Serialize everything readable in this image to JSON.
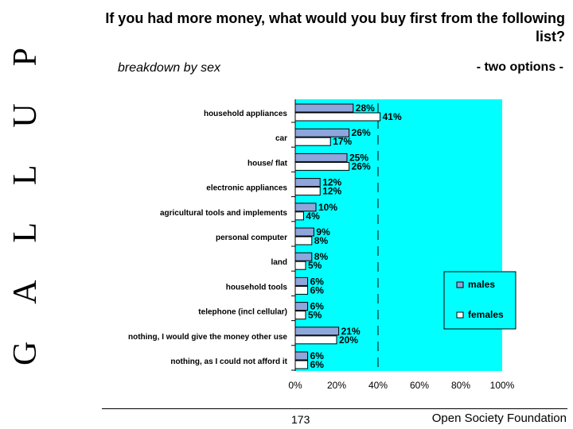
{
  "header": {
    "title": "If you had more money, what would you buy first from the following list?",
    "subtitle": "breakdown by sex",
    "options_note": "- two options -"
  },
  "brand": {
    "vertical_logo": "GALLUP"
  },
  "footer": {
    "page_number": "173",
    "organization": "Open Society Foundation"
  },
  "colors": {
    "plot_background": "#00ffff",
    "males_bar": "#8fa6dc",
    "females_bar": "#ffffff",
    "bar_outline": "#000000"
  },
  "chart_data": {
    "type": "bar",
    "orientation": "horizontal",
    "categories": [
      "household appliances",
      "car",
      "house/ flat",
      "electronic appliances",
      "agricultural tools and implements",
      "personal computer",
      "land",
      "household tools",
      "telephone (incl cellular)",
      "nothing, I would give the money other use",
      "nothing, as I could not afford it"
    ],
    "series": [
      {
        "name": "males",
        "values": [
          28,
          26,
          25,
          12,
          10,
          9,
          8,
          6,
          6,
          21,
          6
        ]
      },
      {
        "name": "females",
        "values": [
          41,
          17,
          26,
          12,
          4,
          8,
          5,
          6,
          5,
          20,
          6
        ]
      }
    ],
    "value_labels": {
      "males": [
        "28%",
        "26%",
        "25%",
        "12%",
        "10%",
        "9%",
        "8%",
        "6%",
        "6%",
        "21%",
        "6%"
      ],
      "females": [
        "41%",
        "17%",
        "26%",
        "12%",
        "4%",
        "8%",
        "5%",
        "6%",
        "5%",
        "20%",
        "6%"
      ]
    },
    "xlim": [
      0,
      100
    ],
    "xticks": [
      "0%",
      "20%",
      "40%",
      "60%",
      "80%",
      "100%"
    ],
    "legend": [
      "males",
      "females"
    ],
    "legend_position": "right",
    "grid": false
  }
}
